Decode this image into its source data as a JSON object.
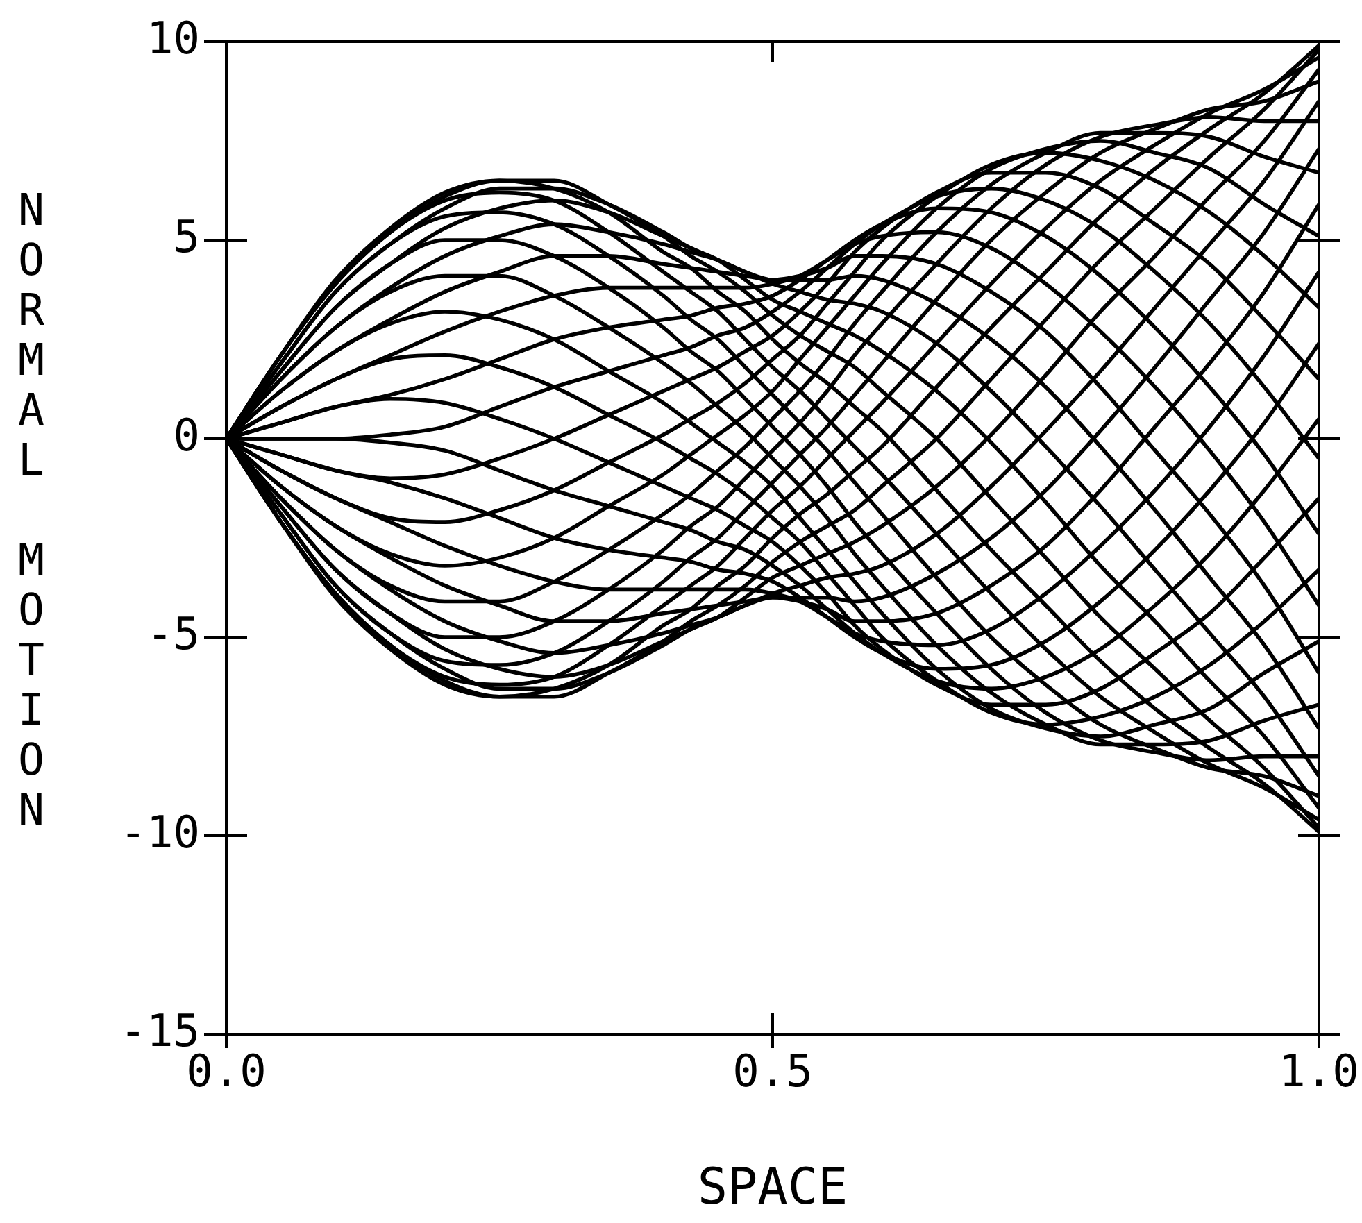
{
  "chart_data": {
    "type": "line",
    "xlabel": "SPACE",
    "ylabel": "NORMAL MOTION",
    "x": [
      0,
      0.05,
      0.1,
      0.15,
      0.2,
      0.25,
      0.3,
      0.35,
      0.4,
      0.425,
      0.45,
      0.475,
      0.5,
      0.525,
      0.55,
      0.575,
      0.6,
      0.65,
      0.7,
      0.75,
      0.8,
      0.85,
      0.9,
      0.95,
      1
    ],
    "series": [
      {
        "color": "#000000",
        "values": [
          0,
          2.1,
          4,
          5.3,
          6.2,
          6.5,
          6.3,
          5.7,
          4.7,
          4.3,
          3.7,
          3.2,
          2.5,
          1.9,
          1.4,
          0.8,
          0.2,
          -1.3,
          -2.8,
          -4.2,
          -5.6,
          -6.8,
          -7.8,
          -8.7,
          -9.9
        ]
      },
      {
        "color": "#000000",
        "values": [
          0,
          2.1,
          3.9,
          5.2,
          6.1,
          6.5,
          6.5,
          5.9,
          5.1,
          4.6,
          4.2,
          3.7,
          3.1,
          2.6,
          2.2,
          1.8,
          1.2,
          0,
          -1.5,
          -3,
          -4.5,
          -5.8,
          -7.1,
          -8.3,
          -9.8
        ]
      },
      {
        "color": "#000000",
        "values": [
          0,
          1.9,
          3.7,
          4.9,
          5.8,
          6.3,
          6.3,
          5.9,
          5.2,
          4.8,
          4.5,
          4,
          3.5,
          3.2,
          2.9,
          2.6,
          2.2,
          1.2,
          -0.1,
          -1.6,
          -3.2,
          -4.6,
          -6.1,
          -7.5,
          -9.3
        ]
      },
      {
        "color": "#000000",
        "values": [
          0,
          1.7,
          3.3,
          4.4,
          5.3,
          5.8,
          6,
          5.7,
          5.1,
          4.8,
          4.5,
          4.2,
          3.9,
          3.7,
          3.5,
          3.4,
          3.2,
          2.4,
          1.2,
          -0.2,
          -1.7,
          -3.3,
          -4.9,
          -6.5,
          -8.5
        ]
      },
      {
        "color": "#000000",
        "values": [
          0,
          1.5,
          2.8,
          3.8,
          4.6,
          5.1,
          5.4,
          5.2,
          4.9,
          4.7,
          4.5,
          4.2,
          4,
          4,
          4,
          4.1,
          4,
          3.4,
          2.5,
          1.3,
          -0.2,
          -1.8,
          -3.5,
          -5.2,
          -7.3
        ]
      },
      {
        "color": "#000000",
        "values": [
          0,
          1.2,
          2.2,
          3,
          3.7,
          4.2,
          4.6,
          4.6,
          4.4,
          4.3,
          4.2,
          4.1,
          4,
          4.1,
          4.3,
          4.6,
          4.6,
          4.4,
          3.7,
          2.7,
          1.3,
          -0.3,
          -1.9,
          -3.7,
          -5.9
        ]
      },
      {
        "color": "#000000",
        "values": [
          0,
          0.8,
          1.5,
          2.1,
          2.7,
          3.2,
          3.6,
          3.8,
          3.8,
          3.8,
          3.8,
          3.8,
          3.9,
          4.1,
          4.5,
          4.9,
          5.1,
          5.2,
          4.8,
          3.9,
          2.7,
          1.3,
          -0.3,
          -2.1,
          -4.2
        ]
      },
      {
        "color": "#000000",
        "values": [
          0,
          0.4,
          0.8,
          1.1,
          1.5,
          2,
          2.5,
          2.8,
          3,
          3.1,
          3.3,
          3.4,
          3.6,
          4,
          4.5,
          5,
          5.4,
          5.8,
          5.7,
          5.1,
          4.1,
          2.8,
          1.3,
          -0.4,
          -2.4
        ]
      },
      {
        "color": "#000000",
        "values": [
          0,
          0,
          0,
          0.1,
          0.3,
          0.8,
          1.3,
          1.7,
          2.1,
          2.3,
          2.6,
          2.8,
          3.2,
          3.7,
          4.3,
          4.9,
          5.4,
          6.1,
          6.3,
          6,
          5.3,
          4.2,
          2.9,
          1.3,
          -0.5
        ]
      },
      {
        "color": "#000000",
        "values": [
          0,
          -0.4,
          -0.8,
          -1,
          -0.9,
          -0.5,
          0,
          0.6,
          1.2,
          1.5,
          1.8,
          2.2,
          2.6,
          3.2,
          3.9,
          4.7,
          5.3,
          6.2,
          6.7,
          6.7,
          6.3,
          5.4,
          4.4,
          3,
          1.5
        ]
      },
      {
        "color": "#000000",
        "values": [
          0,
          -0.8,
          -1.5,
          -2,
          -2.1,
          -1.8,
          -1.3,
          -0.6,
          0.1,
          0.5,
          0.9,
          1.4,
          2,
          2.6,
          3.4,
          4.2,
          5,
          6.1,
          6.9,
          7.2,
          7,
          6.5,
          5.7,
          4.6,
          3.3
        ]
      },
      {
        "color": "#000000",
        "values": [
          0,
          -1.2,
          -2.2,
          -2.9,
          -3.2,
          -3,
          -2.5,
          -1.7,
          -0.9,
          -0.4,
          0.1,
          0.6,
          1.2,
          2,
          2.8,
          3.6,
          4.4,
          5.8,
          6.8,
          7.3,
          7.5,
          7.2,
          6.8,
          5.9,
          5.1
        ]
      },
      {
        "color": "#000000",
        "values": [
          0,
          -1.5,
          -2.8,
          -3.7,
          -4.1,
          -4.1,
          -3.6,
          -2.8,
          -1.9,
          -1.4,
          -0.8,
          -0.2,
          0.5,
          1.2,
          2,
          2.9,
          3.7,
          5.2,
          6.4,
          7.2,
          7.7,
          7.7,
          7.6,
          7.1,
          6.7
        ]
      },
      {
        "color": "#000000",
        "values": [
          0,
          -1.7,
          -3.3,
          -4.4,
          -5,
          -5,
          -4.6,
          -3.8,
          -2.8,
          -2.2,
          -1.7,
          -1,
          -0.3,
          0.4,
          1.2,
          2.1,
          2.9,
          4.4,
          5.8,
          6.9,
          7.6,
          7.9,
          8.1,
          8,
          8
        ]
      },
      {
        "color": "#000000",
        "values": [
          0,
          -1.9,
          -3.7,
          -4.9,
          -5.6,
          -5.7,
          -5.4,
          -4.6,
          -3.6,
          -3,
          -2.5,
          -1.8,
          -1.1,
          -0.4,
          0.3,
          1.1,
          1.9,
          3.5,
          5,
          6.2,
          7.2,
          7.8,
          8.3,
          8.5,
          9
        ]
      },
      {
        "color": "#000000",
        "values": [
          0,
          -2.1,
          -3.9,
          -5.2,
          -6,
          -6.2,
          -6,
          -5.2,
          -4.2,
          -3.7,
          -3.2,
          -2.5,
          -1.8,
          -1.2,
          -0.5,
          0.2,
          0.9,
          2.4,
          3.9,
          5.3,
          6.5,
          7.4,
          8.2,
          8.8,
          9.6
        ]
      },
      {
        "color": "#000000",
        "values": [
          0,
          -2.1,
          -4,
          -5.3,
          -6.2,
          -6.5,
          -6.3,
          -5.7,
          -4.7,
          -4.3,
          -3.7,
          -3.2,
          -2.5,
          -1.9,
          -1.4,
          -0.8,
          -0.2,
          1.3,
          2.8,
          4.2,
          5.6,
          6.8,
          7.8,
          8.7,
          9.9
        ]
      },
      {
        "color": "#000000",
        "values": [
          0,
          -2.1,
          -3.9,
          -5.2,
          -6.1,
          -6.5,
          -6.5,
          -5.9,
          -5.1,
          -4.6,
          -4.2,
          -3.7,
          -3.1,
          -2.6,
          -2.2,
          -1.8,
          -1.2,
          0,
          1.5,
          3,
          4.5,
          5.8,
          7.1,
          8.3,
          9.8
        ]
      },
      {
        "color": "#000000",
        "values": [
          0,
          -1.9,
          -3.7,
          -4.9,
          -5.8,
          -6.3,
          -6.3,
          -5.9,
          -5.2,
          -4.8,
          -4.5,
          -4,
          -3.5,
          -3.2,
          -2.9,
          -2.6,
          -2.2,
          -1.2,
          0.1,
          1.6,
          3.2,
          4.6,
          6.1,
          7.5,
          9.3
        ]
      },
      {
        "color": "#000000",
        "values": [
          0,
          -1.7,
          -3.3,
          -4.4,
          -5.3,
          -5.8,
          -6,
          -5.7,
          -5.1,
          -4.8,
          -4.5,
          -4.2,
          -3.9,
          -3.7,
          -3.5,
          -3.4,
          -3.2,
          -2.4,
          -1.2,
          0.2,
          1.7,
          3.3,
          4.9,
          6.5,
          8.5
        ]
      },
      {
        "color": "#000000",
        "values": [
          0,
          -1.5,
          -2.8,
          -3.8,
          -4.6,
          -5.1,
          -5.4,
          -5.2,
          -4.9,
          -4.7,
          -4.5,
          -4.2,
          -4,
          -4,
          -4,
          -4.1,
          -4,
          -3.4,
          -2.5,
          -1.3,
          0.2,
          1.8,
          3.5,
          5.2,
          7.3
        ]
      },
      {
        "color": "#000000",
        "values": [
          0,
          -1.2,
          -2.2,
          -3,
          -3.7,
          -4.2,
          -4.6,
          -4.6,
          -4.4,
          -4.3,
          -4.2,
          -4.1,
          -4,
          -4.1,
          -4.3,
          -4.6,
          -4.6,
          -4.4,
          -3.7,
          -2.7,
          -1.3,
          0.3,
          1.9,
          3.7,
          5.9
        ]
      },
      {
        "color": "#000000",
        "values": [
          0,
          -0.8,
          -1.5,
          -2.1,
          -2.7,
          -3.2,
          -3.6,
          -3.8,
          -3.8,
          -3.8,
          -3.8,
          -3.8,
          -3.9,
          -4.1,
          -4.5,
          -4.9,
          -5.1,
          -5.2,
          -4.8,
          -3.9,
          -2.7,
          -1.3,
          0.3,
          2.1,
          4.2
        ]
      },
      {
        "color": "#000000",
        "values": [
          0,
          -0.4,
          -0.8,
          -1.1,
          -1.5,
          -2,
          -2.5,
          -2.8,
          -3,
          -3.1,
          -3.3,
          -3.4,
          -3.6,
          -4,
          -4.5,
          -5,
          -5.4,
          -5.8,
          -5.7,
          -5.1,
          -4.1,
          -2.8,
          -1.3,
          0.4,
          2.4
        ]
      },
      {
        "color": "#000000",
        "values": [
          0,
          0,
          0,
          -0.1,
          -0.3,
          -0.8,
          -1.3,
          -1.7,
          -2.1,
          -2.3,
          -2.6,
          -2.8,
          -3.2,
          -3.7,
          -4.3,
          -4.9,
          -5.4,
          -6.1,
          -6.3,
          -6,
          -5.3,
          -4.2,
          -2.9,
          -1.3,
          0.5
        ]
      },
      {
        "color": "#000000",
        "values": [
          0,
          0.4,
          0.8,
          1,
          0.9,
          0.5,
          0,
          -0.6,
          -1.2,
          -1.5,
          -1.8,
          -2.2,
          -2.6,
          -3.2,
          -3.9,
          -4.7,
          -5.3,
          -6.2,
          -6.7,
          -6.7,
          -6.3,
          -5.4,
          -4.4,
          -3,
          -1.5
        ]
      },
      {
        "color": "#000000",
        "values": [
          0,
          0.8,
          1.5,
          2,
          2.1,
          1.8,
          1.3,
          0.6,
          -0.1,
          -0.5,
          -0.9,
          -1.4,
          -2,
          -2.6,
          -3.4,
          -4.2,
          -5,
          -6.1,
          -6.9,
          -7.2,
          -7,
          -6.5,
          -5.7,
          -4.6,
          -3.3
        ]
      },
      {
        "color": "#000000",
        "values": [
          0,
          1.2,
          2.2,
          2.9,
          3.2,
          3,
          2.5,
          1.7,
          0.9,
          0.4,
          -0.1,
          -0.6,
          -1.2,
          -2,
          -2.8,
          -3.6,
          -4.4,
          -5.8,
          -6.8,
          -7.3,
          -7.5,
          -7.2,
          -6.8,
          -5.9,
          -5.1
        ]
      },
      {
        "color": "#000000",
        "values": [
          0,
          1.5,
          2.8,
          3.7,
          4.1,
          4.1,
          3.6,
          2.8,
          1.9,
          1.4,
          0.8,
          0.2,
          -0.5,
          -1.2,
          -2,
          -2.9,
          -3.7,
          -5.2,
          -6.4,
          -7.2,
          -7.7,
          -7.7,
          -7.6,
          -7.1,
          -6.7
        ]
      },
      {
        "color": "#000000",
        "values": [
          0,
          1.7,
          3.3,
          4.4,
          5,
          5,
          4.6,
          3.8,
          2.8,
          2.2,
          1.7,
          1,
          0.3,
          -0.4,
          -1.2,
          -2.1,
          -2.9,
          -4.4,
          -5.8,
          -6.9,
          -7.6,
          -7.9,
          -8.1,
          -8,
          -8
        ]
      },
      {
        "color": "#000000",
        "values": [
          0,
          1.9,
          3.7,
          4.9,
          5.6,
          5.7,
          5.4,
          4.6,
          3.6,
          3,
          2.5,
          1.8,
          1.1,
          0.4,
          -0.3,
          -1.1,
          -1.9,
          -3.5,
          -5,
          -6.2,
          -7.2,
          -7.8,
          -8.3,
          -8.5,
          -9
        ]
      },
      {
        "color": "#000000",
        "values": [
          0,
          2.1,
          3.9,
          5.2,
          6,
          6.2,
          6,
          5.2,
          4.2,
          3.7,
          3.2,
          2.5,
          1.8,
          1.2,
          0.5,
          -0.2,
          -0.9,
          -2.4,
          -3.9,
          -5.3,
          -6.5,
          -7.4,
          -8.2,
          -8.8,
          -9.6
        ]
      }
    ],
    "xlim": [
      0,
      1
    ],
    "xticks": [
      {
        "value": 0,
        "label": "0.0"
      },
      {
        "value": 0.5,
        "label": "0.5"
      },
      {
        "value": 1,
        "label": "1.0"
      }
    ],
    "ylim": [
      -15,
      10
    ],
    "yticks": [
      -15,
      -10,
      -5,
      0,
      5,
      10
    ],
    "grid": false,
    "legend": false,
    "marker": "none",
    "line_style": "solid"
  }
}
